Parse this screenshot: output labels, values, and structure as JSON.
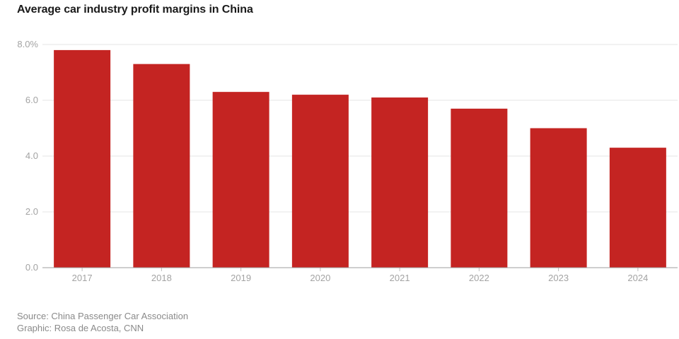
{
  "chart_data": {
    "type": "bar",
    "title": "Average car industry profit margins in China",
    "categories": [
      "2017",
      "2018",
      "2019",
      "2020",
      "2021",
      "2022",
      "2023",
      "2024"
    ],
    "values": [
      7.8,
      7.3,
      6.3,
      6.2,
      6.1,
      5.7,
      5.0,
      4.3
    ],
    "ylim": [
      0,
      8
    ],
    "yticks": [
      {
        "value": 0,
        "label": "0.0"
      },
      {
        "value": 2,
        "label": "2.0"
      },
      {
        "value": 4,
        "label": "4.0"
      },
      {
        "value": 6,
        "label": "6.0"
      },
      {
        "value": 8,
        "label": "8.0%"
      }
    ],
    "grid": true,
    "bar_color": "#c42422"
  },
  "footer": {
    "source": "Source: China Passenger Car Association",
    "credit": "Graphic: Rosa de Acosta, CNN"
  }
}
